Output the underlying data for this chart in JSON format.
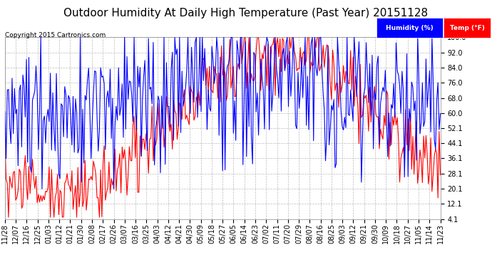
{
  "title": "Outdoor Humidity At Daily High Temperature (Past Year) 20151128",
  "copyright": "Copyright 2015 Cartronics.com",
  "y_ticks": [
    4.1,
    12.1,
    20.1,
    28.1,
    36.1,
    44.1,
    52.1,
    60.0,
    68.0,
    76.0,
    84.0,
    92.0,
    100.0
  ],
  "ylim": [
    4.1,
    100.0
  ],
  "background_color": "#FFFFFF",
  "grid_color": "#BBBBBB",
  "title_fontsize": 11,
  "axis_fontsize": 7,
  "humidity_color": "#0000FF",
  "temp_color": "#FF0000",
  "x_tick_labels": [
    "11/28",
    "12/07",
    "12/16",
    "12/25",
    "01/03",
    "01/12",
    "01/21",
    "01/30",
    "02/08",
    "02/17",
    "02/26",
    "03/07",
    "03/16",
    "03/25",
    "04/03",
    "04/12",
    "04/21",
    "04/30",
    "05/09",
    "05/18",
    "05/27",
    "06/05",
    "06/14",
    "06/23",
    "07/02",
    "07/11",
    "07/20",
    "07/29",
    "08/07",
    "08/16",
    "08/25",
    "09/03",
    "09/12",
    "09/21",
    "09/30",
    "10/09",
    "10/18",
    "10/27",
    "11/05",
    "11/14",
    "11/23"
  ],
  "humidity_seed": 101,
  "temp_seed": 202
}
